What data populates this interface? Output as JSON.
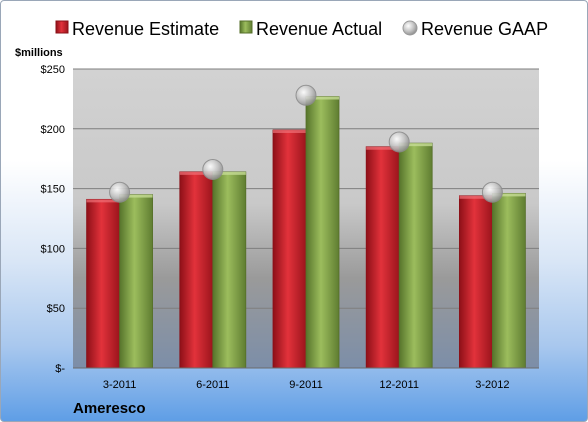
{
  "colors": {
    "estimate": "#c8202a",
    "actual": "#7e9f44",
    "gaap": "#b9b9b9"
  },
  "legend": {
    "estimate_label": "Revenue Estimate",
    "actual_label": "Revenue Actual",
    "gaap_label": "Revenue GAAP",
    "placement": "top"
  },
  "company": "Ameresco",
  "chart_data": {
    "type": "bar",
    "unit_label": "$millions",
    "categories": [
      "3-2011",
      "6-2011",
      "9-2011",
      "12-2011",
      "3-2012"
    ],
    "series": [
      {
        "name": "Revenue Estimate",
        "kind": "bar",
        "values": [
          141,
          164,
          199,
          185,
          144
        ]
      },
      {
        "name": "Revenue Actual",
        "kind": "bar",
        "values": [
          145,
          164,
          227,
          188,
          146
        ]
      },
      {
        "name": "Revenue GAAP",
        "kind": "marker",
        "values": [
          147,
          166,
          228,
          189,
          147
        ]
      }
    ],
    "ylim": [
      0,
      250
    ],
    "yticks": [
      0,
      50,
      100,
      150,
      200,
      250
    ],
    "ytick_labels": [
      "$-",
      "$50",
      "$100",
      "$150",
      "$200",
      "$250"
    ],
    "grid": true
  }
}
